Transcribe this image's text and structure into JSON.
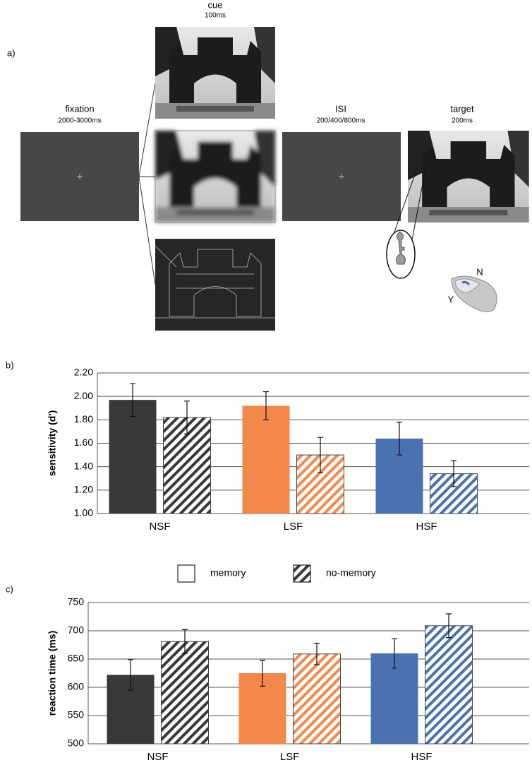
{
  "figure_a": {
    "label": "a)",
    "cue": {
      "title": "cue",
      "duration": "100ms"
    },
    "fixation": {
      "title": "fixation",
      "duration": "2000-3000ms"
    },
    "isi": {
      "title": "ISI",
      "duration": "200/400/800ms"
    },
    "target": {
      "title": "target",
      "duration": "200ms"
    },
    "mouse": {
      "left": "Y",
      "right": "N"
    }
  },
  "chart_data": [
    {
      "type": "bar",
      "label": "b)",
      "y_label": "sensitivity (d')",
      "categories": [
        "NSF",
        "LSF",
        "HSF"
      ],
      "category_colors": [
        "#383838",
        "#f4884a",
        "#4a72b0"
      ],
      "series": [
        {
          "name": "memory",
          "pattern": "solid",
          "values": [
            1.97,
            1.92,
            1.64
          ],
          "errors": [
            0.14,
            0.12,
            0.14
          ]
        },
        {
          "name": "no-memory",
          "pattern": "hatched",
          "values": [
            1.82,
            1.5,
            1.34
          ],
          "errors": [
            0.14,
            0.15,
            0.11
          ]
        }
      ],
      "ylim": [
        1.0,
        2.2
      ],
      "yticks": [
        {
          "value": 1.0,
          "label": "1.00"
        },
        {
          "value": 1.2,
          "label": "1.20"
        },
        {
          "value": 1.4,
          "label": "1.40"
        },
        {
          "value": 1.6,
          "label": "1.60"
        },
        {
          "value": 1.8,
          "label": "1.80"
        },
        {
          "value": 2.0,
          "label": "2.00"
        },
        {
          "value": 2.2,
          "label": "2.20"
        }
      ],
      "grid": true,
      "legend": "bottom"
    },
    {
      "type": "bar",
      "label": "c)",
      "y_label": "reaction time (ms)",
      "categories": [
        "NSF",
        "LSF",
        "HSF"
      ],
      "category_colors": [
        "#383838",
        "#f4884a",
        "#4a72b0"
      ],
      "series": [
        {
          "pattern": "solid",
          "values": [
            622,
            625,
            660
          ],
          "errors": [
            27,
            23,
            26
          ]
        },
        {
          "pattern": "hatched",
          "values": [
            681,
            659,
            709
          ],
          "errors": [
            21,
            19,
            21
          ]
        }
      ],
      "ylim": [
        500,
        750
      ],
      "yticks": [
        500,
        550,
        600,
        650,
        700,
        750
      ],
      "grid": true
    }
  ]
}
